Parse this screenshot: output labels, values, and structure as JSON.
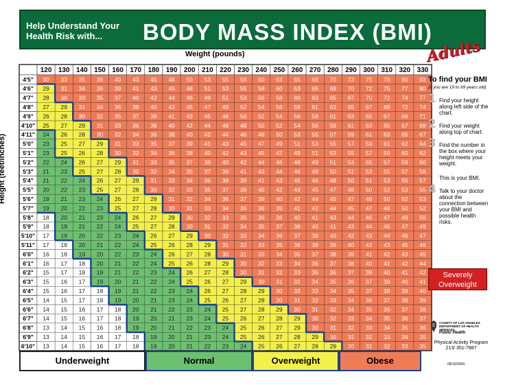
{
  "banner": {
    "subtitle": "Help Understand Your Health Risk with...",
    "title": "BODY MASS INDEX (BMI)",
    "tag": "Adults"
  },
  "axis": {
    "weight_label": "Weight (pounds)",
    "height_label": "Height (feet/inches)"
  },
  "weights": [
    "120",
    "130",
    "140",
    "150",
    "160",
    "170",
    "180",
    "190",
    "200",
    "210",
    "220",
    "230",
    "240",
    "250",
    "260",
    "270",
    "280",
    "290",
    "300",
    "310",
    "320",
    "330"
  ],
  "heights": [
    "4'5\"",
    "4'6\"",
    "4'7\"",
    "4'8\"",
    "4'9\"",
    "4'10\"",
    "4'11\"",
    "5'0\"",
    "5'1\"",
    "5'2\"",
    "5'3\"",
    "5'4\"",
    "5'5\"",
    "5'6\"",
    "5'7\"",
    "5'8\"",
    "5'9\"",
    "5'10\"",
    "5'11\"",
    "6'0\"",
    "6'1\"",
    "6'2\"",
    "6'3\"",
    "6'4\"",
    "6'5\"",
    "6'6\"",
    "6'7\"",
    "6'8\"",
    "6'9\"",
    "6'10\""
  ],
  "sidebar": {
    "title": "To find your BMI",
    "note": "(if you are 19 to 69 years old)",
    "steps": [
      {
        "num": "1",
        "text": "Find your height along left side of the chart."
      },
      {
        "num": "2",
        "text": "Find your weight along top of chart."
      },
      {
        "num": "3",
        "text": "Find the number in the box where your height meets your weight."
      },
      {
        "num": "4",
        "text": "Talk to your doctor about the connection between your BMI and possible health risks."
      }
    ],
    "this_is": "This is your BMI.",
    "severely": "Severely Overweight",
    "dept_lines": [
      "COUNTY OF LOS ANGELES",
      "DEPARTMENT OF HEALTH SERVICES",
      "Public Health"
    ],
    "program": "Physical Activity Program",
    "phone": "213/ 351-7887",
    "date": "08/15/2004"
  },
  "legend": {
    "underweight": "Underweight",
    "normal": "Normal",
    "overweight": "Overweight",
    "obese": "Obese"
  },
  "colors": {
    "banner": "#0b6b3a",
    "underweight": "#ffffff",
    "normal": "#6cc070",
    "overweight": "#f4f04a",
    "obese": "#ef7b57",
    "severe": "#d32020",
    "boundary": "#1a3f8c"
  }
}
